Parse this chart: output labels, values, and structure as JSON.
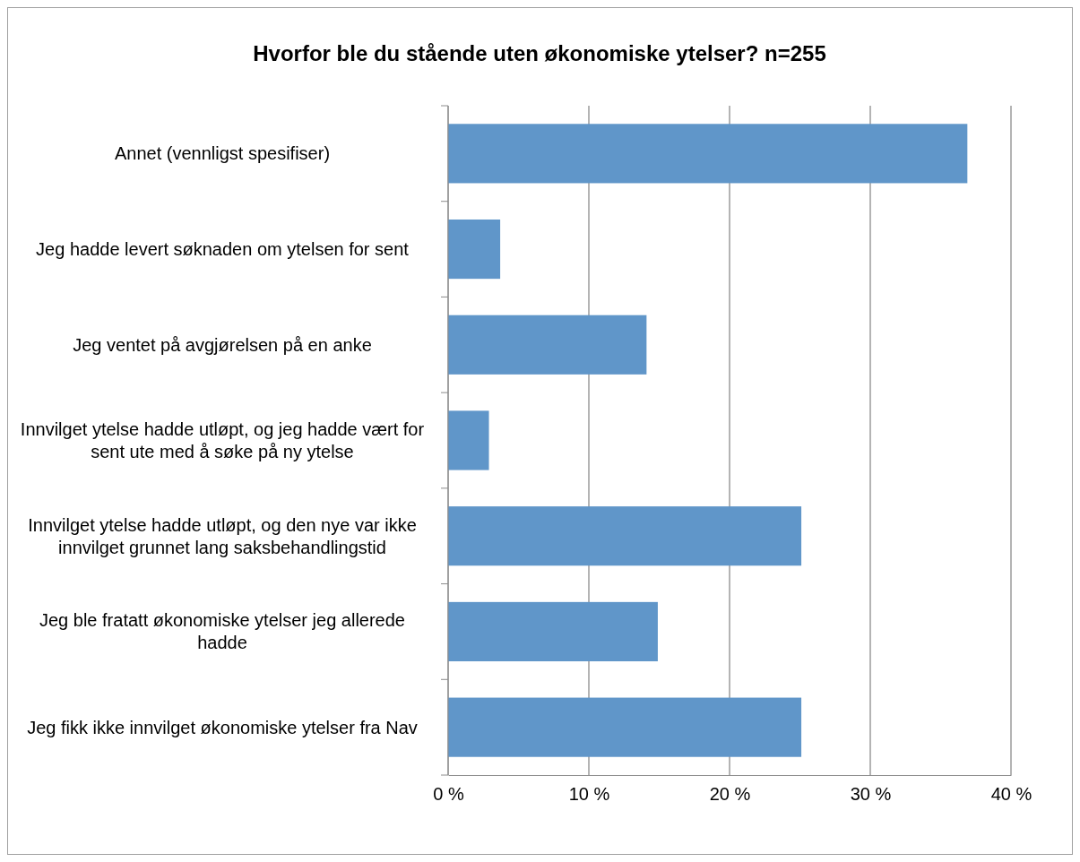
{
  "chart_data": {
    "type": "bar",
    "orientation": "horizontal",
    "title": "Hvorfor ble du stående uten økonomiske ytelser? n=255",
    "categories": [
      "Annet (vennligst spesifiser)",
      "Jeg hadde levert søknaden om ytelsen for sent",
      "Jeg ventet på avgjørelsen på en anke",
      "Innvilget ytelse hadde utløpt, og jeg hadde vært for sent ute med å søke på ny ytelse",
      "Innvilget ytelse hadde utløpt, og den nye var ikke innvilget grunnet lang saksbehandlingstid",
      "Jeg ble fratatt økonomiske ytelser jeg allerede hadde",
      "Jeg fikk ikke innvilget økonomiske ytelser fra Nav"
    ],
    "values": [
      36.9,
      3.7,
      14.1,
      2.9,
      25.1,
      14.9,
      25.1
    ],
    "color": "#6096c9",
    "xlim": [
      0,
      40
    ],
    "xticks": [
      {
        "value": 0,
        "label": "0 %"
      },
      {
        "value": 10,
        "label": "10 %"
      },
      {
        "value": 20,
        "label": "20 %"
      },
      {
        "value": 30,
        "label": "30 %"
      },
      {
        "value": 40,
        "label": "40 %"
      }
    ],
    "grid": "x"
  }
}
